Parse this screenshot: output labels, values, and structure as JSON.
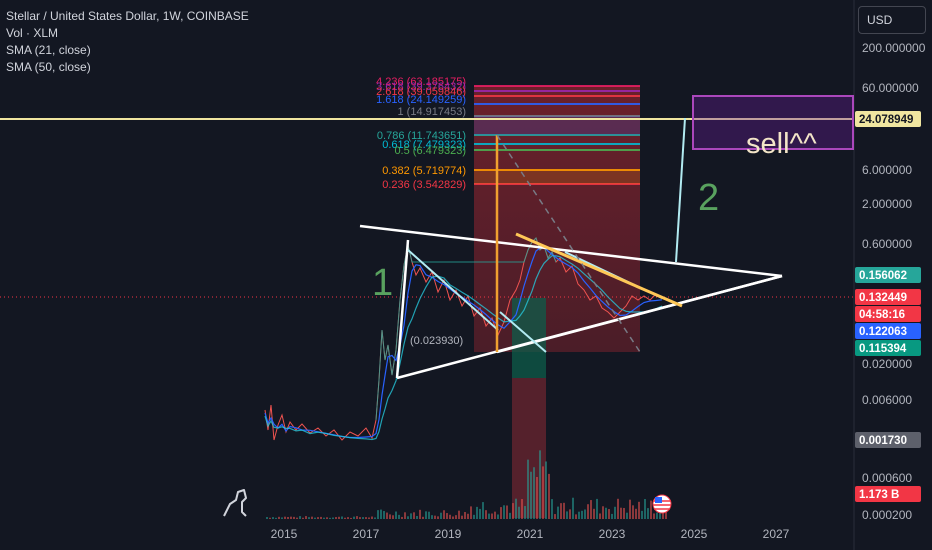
{
  "legend": {
    "title": "Stellar / United States Dollar, 1W, COINBASE",
    "volume": "Vol · XLM",
    "sma21": "SMA (21, close)",
    "sma50": "SMA (50, close)"
  },
  "currency_button": "USD",
  "chart_data": {
    "type": "line",
    "scale": "log",
    "x_ticks": [
      "2015",
      "2017",
      "2019",
      "2021",
      "2023",
      "2025",
      "2027"
    ],
    "y_ticks": [
      "200.000000",
      "60.000000",
      "6.000000",
      "2.000000",
      "0.600000",
      "0.020000",
      "0.006000",
      "0.000600",
      "0.000200"
    ],
    "price_tags": [
      {
        "value": "24.078949",
        "bg": "#f0e6a0",
        "fg": "#131722"
      },
      {
        "value": "0.156062",
        "bg": "#26a69a",
        "fg": "#ffffff"
      },
      {
        "value": "0.132449",
        "bg": "#f23645",
        "fg": "#ffffff"
      },
      {
        "value": "04:58:16",
        "bg": "#f23645",
        "fg": "#ffffff"
      },
      {
        "value": "0.122063",
        "bg": "#2962ff",
        "fg": "#ffffff"
      },
      {
        "value": "0.115394",
        "bg": "#089981",
        "fg": "#ffffff"
      },
      {
        "value": "0.001730",
        "bg": "#5d606b",
        "fg": "#ffffff"
      },
      {
        "value": "1.173 B",
        "bg": "#f23645",
        "fg": "#ffffff"
      }
    ],
    "fib_levels": [
      {
        "label": "4.236 (63.185175)",
        "color": "#e91e63"
      },
      {
        "label": "3.618 (39.376432)",
        "color": "#9c27b0"
      },
      {
        "label": "2.618 (39.059846)",
        "color": "#f23645"
      },
      {
        "label": "1.618 (24.149259)",
        "color": "#2962ff"
      },
      {
        "label": "1 (14.917453)",
        "color": "#787b86"
      },
      {
        "label": "0.786 (11.743651)",
        "color": "#26a69a"
      },
      {
        "label": "0.618 (7.479323)",
        "color": "#00bcd4"
      },
      {
        "label": "0.5 (6.479323)",
        "color": "#4caf50"
      },
      {
        "label": "0.382 (5.719774)",
        "color": "#ff9800"
      },
      {
        "label": "0.236 (3.542829)",
        "color": "#f23645"
      }
    ],
    "fib_base_label": "(0.023930)",
    "annotations": [
      "1",
      "2",
      "sell^^"
    ]
  }
}
